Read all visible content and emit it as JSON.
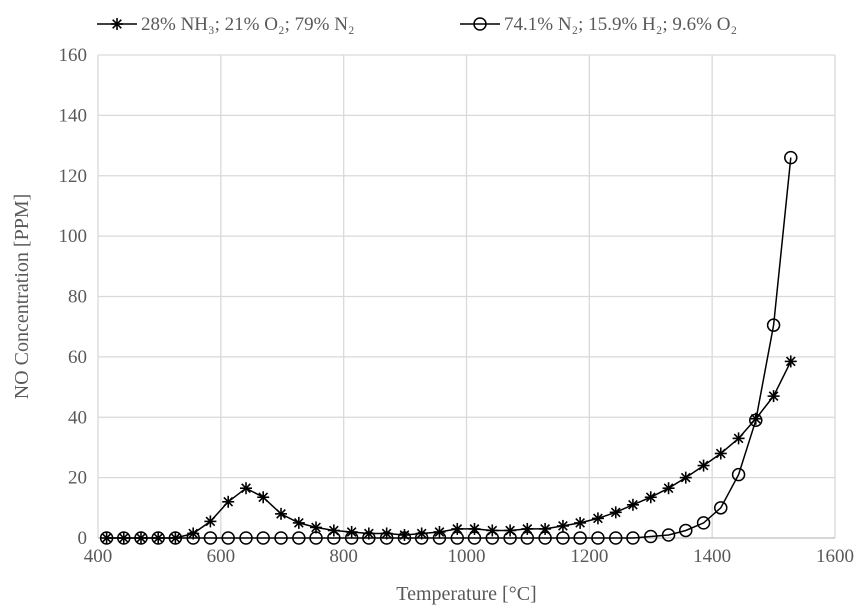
{
  "chart_data": {
    "type": "line",
    "xlabel": "Temperature [°C]",
    "ylabel": "NO Concentration [PPM]",
    "xlim": [
      400,
      1600
    ],
    "ylim": [
      0,
      160
    ],
    "xticks": [
      400,
      600,
      800,
      1000,
      1200,
      1400,
      1600
    ],
    "yticks": [
      0,
      20,
      40,
      60,
      80,
      100,
      120,
      140,
      160
    ],
    "grid": "major, both axes",
    "legend": "top",
    "series": [
      {
        "name": "28% NH₃; 21% O₂; 79% N₂",
        "marker": "asterisk",
        "color": "#000000",
        "x": [
          414,
          442,
          470,
          498,
          526,
          555,
          583,
          612,
          641,
          669,
          698,
          727,
          755,
          784,
          813,
          841,
          870,
          899,
          927,
          956,
          985,
          1013,
          1042,
          1071,
          1099,
          1128,
          1157,
          1185,
          1214,
          1243,
          1271,
          1300,
          1329,
          1357,
          1386,
          1414,
          1443,
          1471,
          1500,
          1528
        ],
        "y": [
          0,
          0,
          0,
          0,
          0,
          1.5,
          5.5,
          12,
          16.5,
          13.5,
          8,
          5,
          3.5,
          2.5,
          2,
          1.5,
          1.5,
          1,
          1.5,
          2,
          3,
          3,
          2.5,
          2.5,
          3,
          3,
          4,
          5,
          6.5,
          8.5,
          11,
          13.5,
          16.5,
          20,
          24,
          28,
          33,
          39.5,
          47,
          58.5
        ]
      },
      {
        "name": "74.1% N₂; 15.9% H₂; 9.6% O₂",
        "marker": "circle",
        "color": "#000000",
        "x": [
          414,
          442,
          470,
          498,
          526,
          555,
          583,
          612,
          641,
          669,
          698,
          727,
          755,
          784,
          813,
          841,
          870,
          899,
          927,
          956,
          985,
          1013,
          1042,
          1071,
          1099,
          1128,
          1157,
          1185,
          1214,
          1243,
          1271,
          1300,
          1329,
          1357,
          1386,
          1414,
          1443,
          1471,
          1500,
          1528
        ],
        "y": [
          0,
          0,
          0,
          0,
          0,
          0,
          0,
          0,
          0,
          0,
          0,
          0,
          0,
          0,
          0,
          0,
          0,
          0,
          0,
          0,
          0,
          0,
          0,
          0,
          0,
          0,
          0,
          0,
          0,
          0,
          0,
          0.5,
          1,
          2.5,
          5,
          10,
          21,
          39,
          70.5,
          126
        ]
      }
    ]
  }
}
